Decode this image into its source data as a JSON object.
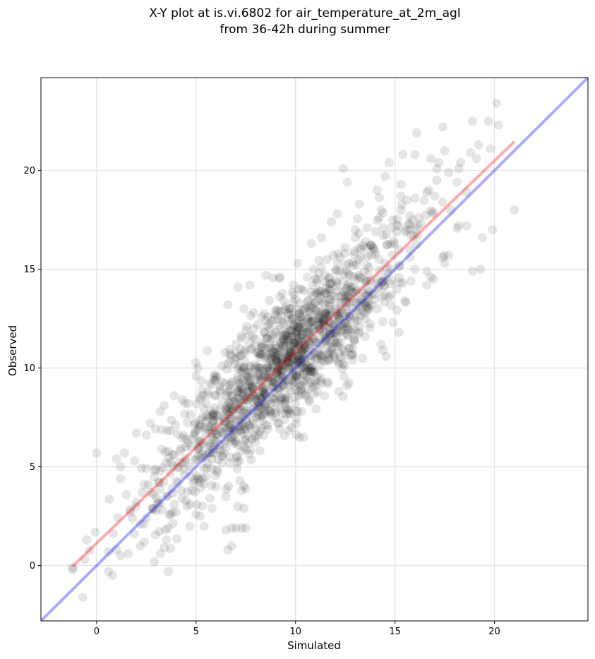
{
  "chart_data": {
    "type": "scatter",
    "title": "X-Y plot at is.vi.6802 for air_temperature_at_2m_agl\nfrom 36-42h during summer",
    "title_lines": [
      "X-Y plot at is.vi.6802 for air_temperature_at_2m_agl",
      "from 36-42h during summer"
    ],
    "xlabel": "Simulated",
    "ylabel": "Observed",
    "xlim": [
      -2.8,
      24.7
    ],
    "ylim": [
      -2.8,
      24.7
    ],
    "x_ticks": [
      0,
      5,
      10,
      15,
      20
    ],
    "y_ticks": [
      0,
      5,
      10,
      15,
      20
    ],
    "x_tick_labels": [
      "0",
      "5",
      "10",
      "15",
      "20"
    ],
    "y_tick_labels": [
      "0",
      "5",
      "10",
      "15",
      "20"
    ],
    "grid": true,
    "point_color": "#000000",
    "point_alpha": 0.1,
    "n_points_approx": 1500,
    "points": [
      [
        20.1,
        23.4
      ],
      [
        19.7,
        22.5
      ],
      [
        20.2,
        22.3
      ],
      [
        17.4,
        22.2
      ],
      [
        16.1,
        21.9
      ],
      [
        18.9,
        22.5
      ],
      [
        19.2,
        21.3
      ],
      [
        17.5,
        21.0
      ],
      [
        19.8,
        21.1
      ],
      [
        16.8,
        20.6
      ],
      [
        17.2,
        20.4
      ],
      [
        19.1,
        20.6
      ],
      [
        16.0,
        20.8
      ],
      [
        15.4,
        20.8
      ],
      [
        14.7,
        20.4
      ],
      [
        18.2,
        20.1
      ],
      [
        12.4,
        20.1
      ],
      [
        14.5,
        19.7
      ],
      [
        15.3,
        19.3
      ],
      [
        16.7,
        19.0
      ],
      [
        12.6,
        19.4
      ],
      [
        14.1,
        19.0
      ],
      [
        17.0,
        18.7
      ],
      [
        18.6,
        18.9
      ],
      [
        15.6,
        18.5
      ],
      [
        21.0,
        18.0
      ],
      [
        17.8,
        18.0
      ],
      [
        13.2,
        18.3
      ],
      [
        12.1,
        17.8
      ],
      [
        11.8,
        17.4
      ],
      [
        16.2,
        17.6
      ],
      [
        18.2,
        17.2
      ],
      [
        18.6,
        17.2
      ],
      [
        19.4,
        16.6
      ],
      [
        19.9,
        17.0
      ],
      [
        15.5,
        16.9
      ],
      [
        14.4,
        17.1
      ],
      [
        13.0,
        17.0
      ],
      [
        11.3,
        16.6
      ],
      [
        10.8,
        16.3
      ],
      [
        17.7,
        15.7
      ],
      [
        17.4,
        15.6
      ],
      [
        17.5,
        15.3
      ],
      [
        18.9,
        14.9
      ],
      [
        19.3,
        15.0
      ],
      [
        16.6,
        14.9
      ],
      [
        16.8,
        14.6
      ],
      [
        15.8,
        14.4
      ],
      [
        16.6,
        14.2
      ],
      [
        15.1,
        14.0
      ],
      [
        14.7,
        13.6
      ],
      [
        15.5,
        13.4
      ],
      [
        13.2,
        14.6
      ],
      [
        12.2,
        14.9
      ],
      [
        10.9,
        15.0
      ],
      [
        10.1,
        15.3
      ],
      [
        9.2,
        14.6
      ],
      [
        8.5,
        14.7
      ],
      [
        7.7,
        14.2
      ],
      [
        7.1,
        14.1
      ],
      [
        6.6,
        13.2
      ],
      [
        7.4,
        13.0
      ],
      [
        8.3,
        12.6
      ],
      [
        9.4,
        13.4
      ],
      [
        10.3,
        14.0
      ],
      [
        11.5,
        13.8
      ],
      [
        12.3,
        13.3
      ],
      [
        13.6,
        12.9
      ],
      [
        14.9,
        12.3
      ],
      [
        15.2,
        11.8
      ],
      [
        14.3,
        11.2
      ],
      [
        14.4,
        10.9
      ],
      [
        13.5,
        11.6
      ],
      [
        12.7,
        11.0
      ],
      [
        12.2,
        10.2
      ],
      [
        11.3,
        10.4
      ],
      [
        11.0,
        9.1
      ],
      [
        10.5,
        8.7
      ],
      [
        10.0,
        8.2
      ],
      [
        9.6,
        7.9
      ],
      [
        9.1,
        7.2
      ],
      [
        8.6,
        6.9
      ],
      [
        8.0,
        6.5
      ],
      [
        7.6,
        6.2
      ],
      [
        7.3,
        5.8
      ],
      [
        6.7,
        5.5
      ],
      [
        6.3,
        5.2
      ],
      [
        5.8,
        4.9
      ],
      [
        5.5,
        4.5
      ],
      [
        6.0,
        4.0
      ],
      [
        6.5,
        3.5
      ],
      [
        7.1,
        3.0
      ],
      [
        7.2,
        4.3
      ],
      [
        7.3,
        3.8
      ],
      [
        7.5,
        3.9
      ],
      [
        7.4,
        2.9
      ],
      [
        6.5,
        1.8
      ],
      [
        6.8,
        1.9
      ],
      [
        7.0,
        1.9
      ],
      [
        7.3,
        1.9
      ],
      [
        7.5,
        1.9
      ],
      [
        6.6,
        0.8
      ],
      [
        6.8,
        1.0
      ],
      [
        5.8,
        2.9
      ],
      [
        5.7,
        3.4
      ],
      [
        5.4,
        2.0
      ],
      [
        5.2,
        2.5
      ],
      [
        5.0,
        2.6
      ],
      [
        4.7,
        3.1
      ],
      [
        4.3,
        3.4
      ],
      [
        4.0,
        2.7
      ],
      [
        3.7,
        2.6
      ],
      [
        3.6,
        1.9
      ],
      [
        3.5,
        1.3
      ],
      [
        3.4,
        0.9
      ],
      [
        3.2,
        0.6
      ],
      [
        2.9,
        0.2
      ],
      [
        3.6,
        -0.3
      ],
      [
        2.4,
        1.2
      ],
      [
        2.2,
        1.0
      ],
      [
        1.9,
        1.6
      ],
      [
        1.8,
        2.4
      ],
      [
        1.6,
        0.6
      ],
      [
        1.2,
        0.5
      ],
      [
        1.0,
        0.8
      ],
      [
        0.8,
        -0.5
      ],
      [
        0.6,
        -0.3
      ],
      [
        0.6,
        0.7
      ],
      [
        -1.2,
        -0.2
      ],
      [
        -1.2,
        -0.1
      ],
      [
        -0.6,
        0.3
      ],
      [
        -0.7,
        -1.6
      ],
      [
        -0.5,
        1.3
      ],
      [
        0.0,
        5.7
      ],
      [
        1.0,
        5.4
      ],
      [
        1.4,
        5.7
      ],
      [
        1.2,
        5.0
      ],
      [
        1.2,
        4.4
      ],
      [
        1.9,
        5.3
      ],
      [
        2.0,
        6.7
      ],
      [
        2.5,
        6.6
      ],
      [
        2.7,
        7.2
      ],
      [
        3.2,
        7.8
      ],
      [
        3.4,
        8.1
      ],
      [
        3.9,
        8.6
      ],
      [
        4.3,
        8.4
      ],
      [
        4.6,
        8.2
      ],
      [
        5.0,
        9.6
      ],
      [
        5.1,
        10.0
      ],
      [
        5.3,
        8.9
      ],
      [
        5.5,
        8.2
      ],
      [
        6.2,
        8.9
      ],
      [
        6.0,
        9.5
      ],
      [
        6.6,
        10.2
      ],
      [
        7.0,
        10.8
      ],
      [
        7.3,
        11.5
      ],
      [
        7.9,
        12.0
      ],
      [
        8.1,
        12.2
      ],
      [
        8.6,
        12.6
      ],
      [
        9.0,
        12.9
      ],
      [
        9.5,
        13.1
      ],
      [
        9.8,
        12.7
      ],
      [
        10.4,
        12.9
      ],
      [
        11.1,
        13.4
      ],
      [
        11.7,
        13.9
      ],
      [
        12.4,
        14.4
      ],
      [
        12.9,
        15.2
      ],
      [
        13.3,
        15.6
      ],
      [
        13.8,
        16.2
      ],
      [
        14.4,
        16.7
      ],
      [
        14.9,
        17.5
      ],
      [
        15.3,
        18.0
      ],
      [
        16.0,
        18.6
      ],
      [
        16.6,
        18.9
      ],
      [
        17.1,
        19.5
      ],
      [
        17.7,
        19.9
      ],
      [
        18.3,
        20.4
      ],
      [
        18.8,
        20.9
      ],
      [
        6.2,
        6.8
      ],
      [
        6.4,
        7.0
      ],
      [
        6.7,
        7.4
      ],
      [
        6.9,
        7.9
      ],
      [
        7.1,
        8.2
      ],
      [
        7.4,
        8.4
      ],
      [
        7.6,
        8.8
      ],
      [
        7.8,
        9.1
      ],
      [
        8.0,
        9.4
      ],
      [
        8.2,
        9.6
      ],
      [
        8.4,
        9.9
      ],
      [
        8.6,
        10.1
      ],
      [
        8.8,
        10.4
      ],
      [
        9.0,
        10.6
      ],
      [
        9.2,
        10.9
      ],
      [
        9.4,
        11.1
      ],
      [
        9.6,
        11.4
      ],
      [
        9.8,
        11.6
      ],
      [
        10.0,
        11.8
      ],
      [
        10.2,
        12.0
      ],
      [
        10.4,
        12.3
      ],
      [
        10.6,
        12.5
      ],
      [
        10.8,
        12.7
      ],
      [
        11.0,
        12.9
      ],
      [
        8.1,
        10.8
      ],
      [
        8.3,
        11.2
      ],
      [
        8.7,
        11.0
      ],
      [
        9.3,
        10.1
      ],
      [
        9.7,
        10.3
      ],
      [
        10.1,
        10.6
      ],
      [
        10.5,
        11.0
      ],
      [
        10.9,
        11.5
      ],
      [
        8.9,
        9.3
      ],
      [
        8.5,
        8.9
      ],
      [
        8.2,
        8.6
      ],
      [
        7.9,
        8.0
      ],
      [
        7.6,
        7.7
      ],
      [
        7.2,
        7.3
      ],
      [
        6.9,
        6.8
      ],
      [
        7.7,
        10.1
      ],
      [
        7.3,
        9.8
      ],
      [
        6.8,
        9.2
      ],
      [
        6.5,
        8.6
      ],
      [
        9.9,
        12.2
      ],
      [
        10.3,
        12.6
      ],
      [
        11.4,
        12.4
      ],
      [
        11.7,
        13.0
      ],
      [
        12.1,
        12.7
      ],
      [
        12.5,
        13.6
      ],
      [
        11.9,
        12.0
      ],
      [
        11.5,
        11.4
      ],
      [
        11.2,
        11.9
      ],
      [
        9.4,
        9.6
      ],
      [
        9.1,
        9.9
      ],
      [
        8.8,
        11.7
      ],
      [
        9.6,
        12.4
      ],
      [
        12.8,
        14.1
      ],
      [
        13.1,
        14.5
      ],
      [
        13.7,
        15.1
      ],
      [
        14.2,
        15.5
      ],
      [
        13.4,
        13.8
      ],
      [
        14.0,
        14.3
      ],
      [
        14.6,
        15.0
      ],
      [
        15.2,
        16.0
      ],
      [
        15.8,
        16.7
      ],
      [
        16.3,
        17.3
      ],
      [
        16.9,
        17.8
      ],
      [
        17.4,
        18.4
      ],
      [
        12.0,
        11.3
      ],
      [
        12.6,
        12.1
      ],
      [
        13.1,
        12.4
      ],
      [
        13.8,
        13.2
      ],
      [
        5.6,
        6.1
      ],
      [
        5.3,
        5.8
      ],
      [
        5.0,
        5.4
      ],
      [
        4.7,
        5.0
      ],
      [
        4.4,
        4.6
      ],
      [
        4.1,
        4.2
      ],
      [
        3.8,
        3.9
      ],
      [
        3.5,
        3.5
      ],
      [
        3.1,
        3.2
      ],
      [
        2.8,
        2.9
      ],
      [
        2.5,
        2.4
      ],
      [
        2.2,
        2.1
      ],
      [
        4.6,
        6.2
      ],
      [
        4.2,
        5.8
      ],
      [
        3.9,
        5.6
      ],
      [
        3.5,
        5.2
      ],
      [
        3.2,
        4.8
      ],
      [
        2.9,
        4.5
      ],
      [
        2.6,
        4.1
      ],
      [
        2.3,
        3.7
      ],
      [
        2.0,
        3.2
      ],
      [
        1.7,
        2.7
      ],
      [
        5.9,
        7.6
      ],
      [
        5.5,
        7.3
      ],
      [
        5.2,
        7.0
      ],
      [
        4.9,
        6.6
      ],
      [
        4.5,
        6.4
      ],
      [
        6.1,
        5.9
      ],
      [
        5.8,
        5.4
      ],
      [
        5.4,
        4.9
      ],
      [
        5.1,
        4.4
      ],
      [
        4.8,
        3.8
      ],
      [
        4.5,
        3.3
      ],
      [
        3.9,
        3.1
      ],
      [
        3.3,
        2.8
      ],
      [
        8.5,
        12.4
      ],
      [
        7.9,
        12.8
      ],
      [
        7.5,
        11.9
      ],
      [
        7.0,
        11.2
      ],
      [
        6.7,
        10.7
      ],
      [
        6.3,
        10.1
      ],
      [
        5.9,
        9.4
      ],
      [
        5.6,
        8.8
      ],
      [
        9.2,
        13.6
      ],
      [
        9.9,
        14.2
      ],
      [
        10.6,
        14.6
      ],
      [
        11.3,
        15.1
      ],
      [
        11.9,
        15.7
      ],
      [
        12.5,
        16.1
      ],
      [
        13.0,
        16.6
      ],
      [
        13.6,
        17.1
      ],
      [
        14.2,
        17.6
      ],
      [
        10.0,
        8.9
      ],
      [
        10.4,
        9.3
      ],
      [
        10.8,
        9.8
      ],
      [
        11.2,
        10.1
      ],
      [
        11.6,
        10.7
      ],
      [
        12.4,
        11.6
      ],
      [
        13.0,
        11.9
      ],
      [
        13.5,
        12.5
      ],
      [
        14.1,
        13.0
      ],
      [
        14.8,
        13.7
      ],
      [
        15.4,
        14.3
      ],
      [
        16.0,
        15.0
      ],
      [
        9.5,
        8.0
      ],
      [
        9.0,
        7.5
      ],
      [
        8.6,
        7.1
      ],
      [
        8.2,
        6.8
      ],
      [
        7.8,
        6.4
      ],
      [
        7.4,
        6.0
      ],
      [
        10.3,
        7.8
      ],
      [
        10.7,
        8.3
      ],
      [
        11.1,
        8.8
      ],
      [
        11.6,
        9.3
      ],
      [
        10.2,
        6.5
      ],
      [
        10.4,
        6.5
      ],
      [
        9.8,
        7.0
      ]
    ]
  }
}
